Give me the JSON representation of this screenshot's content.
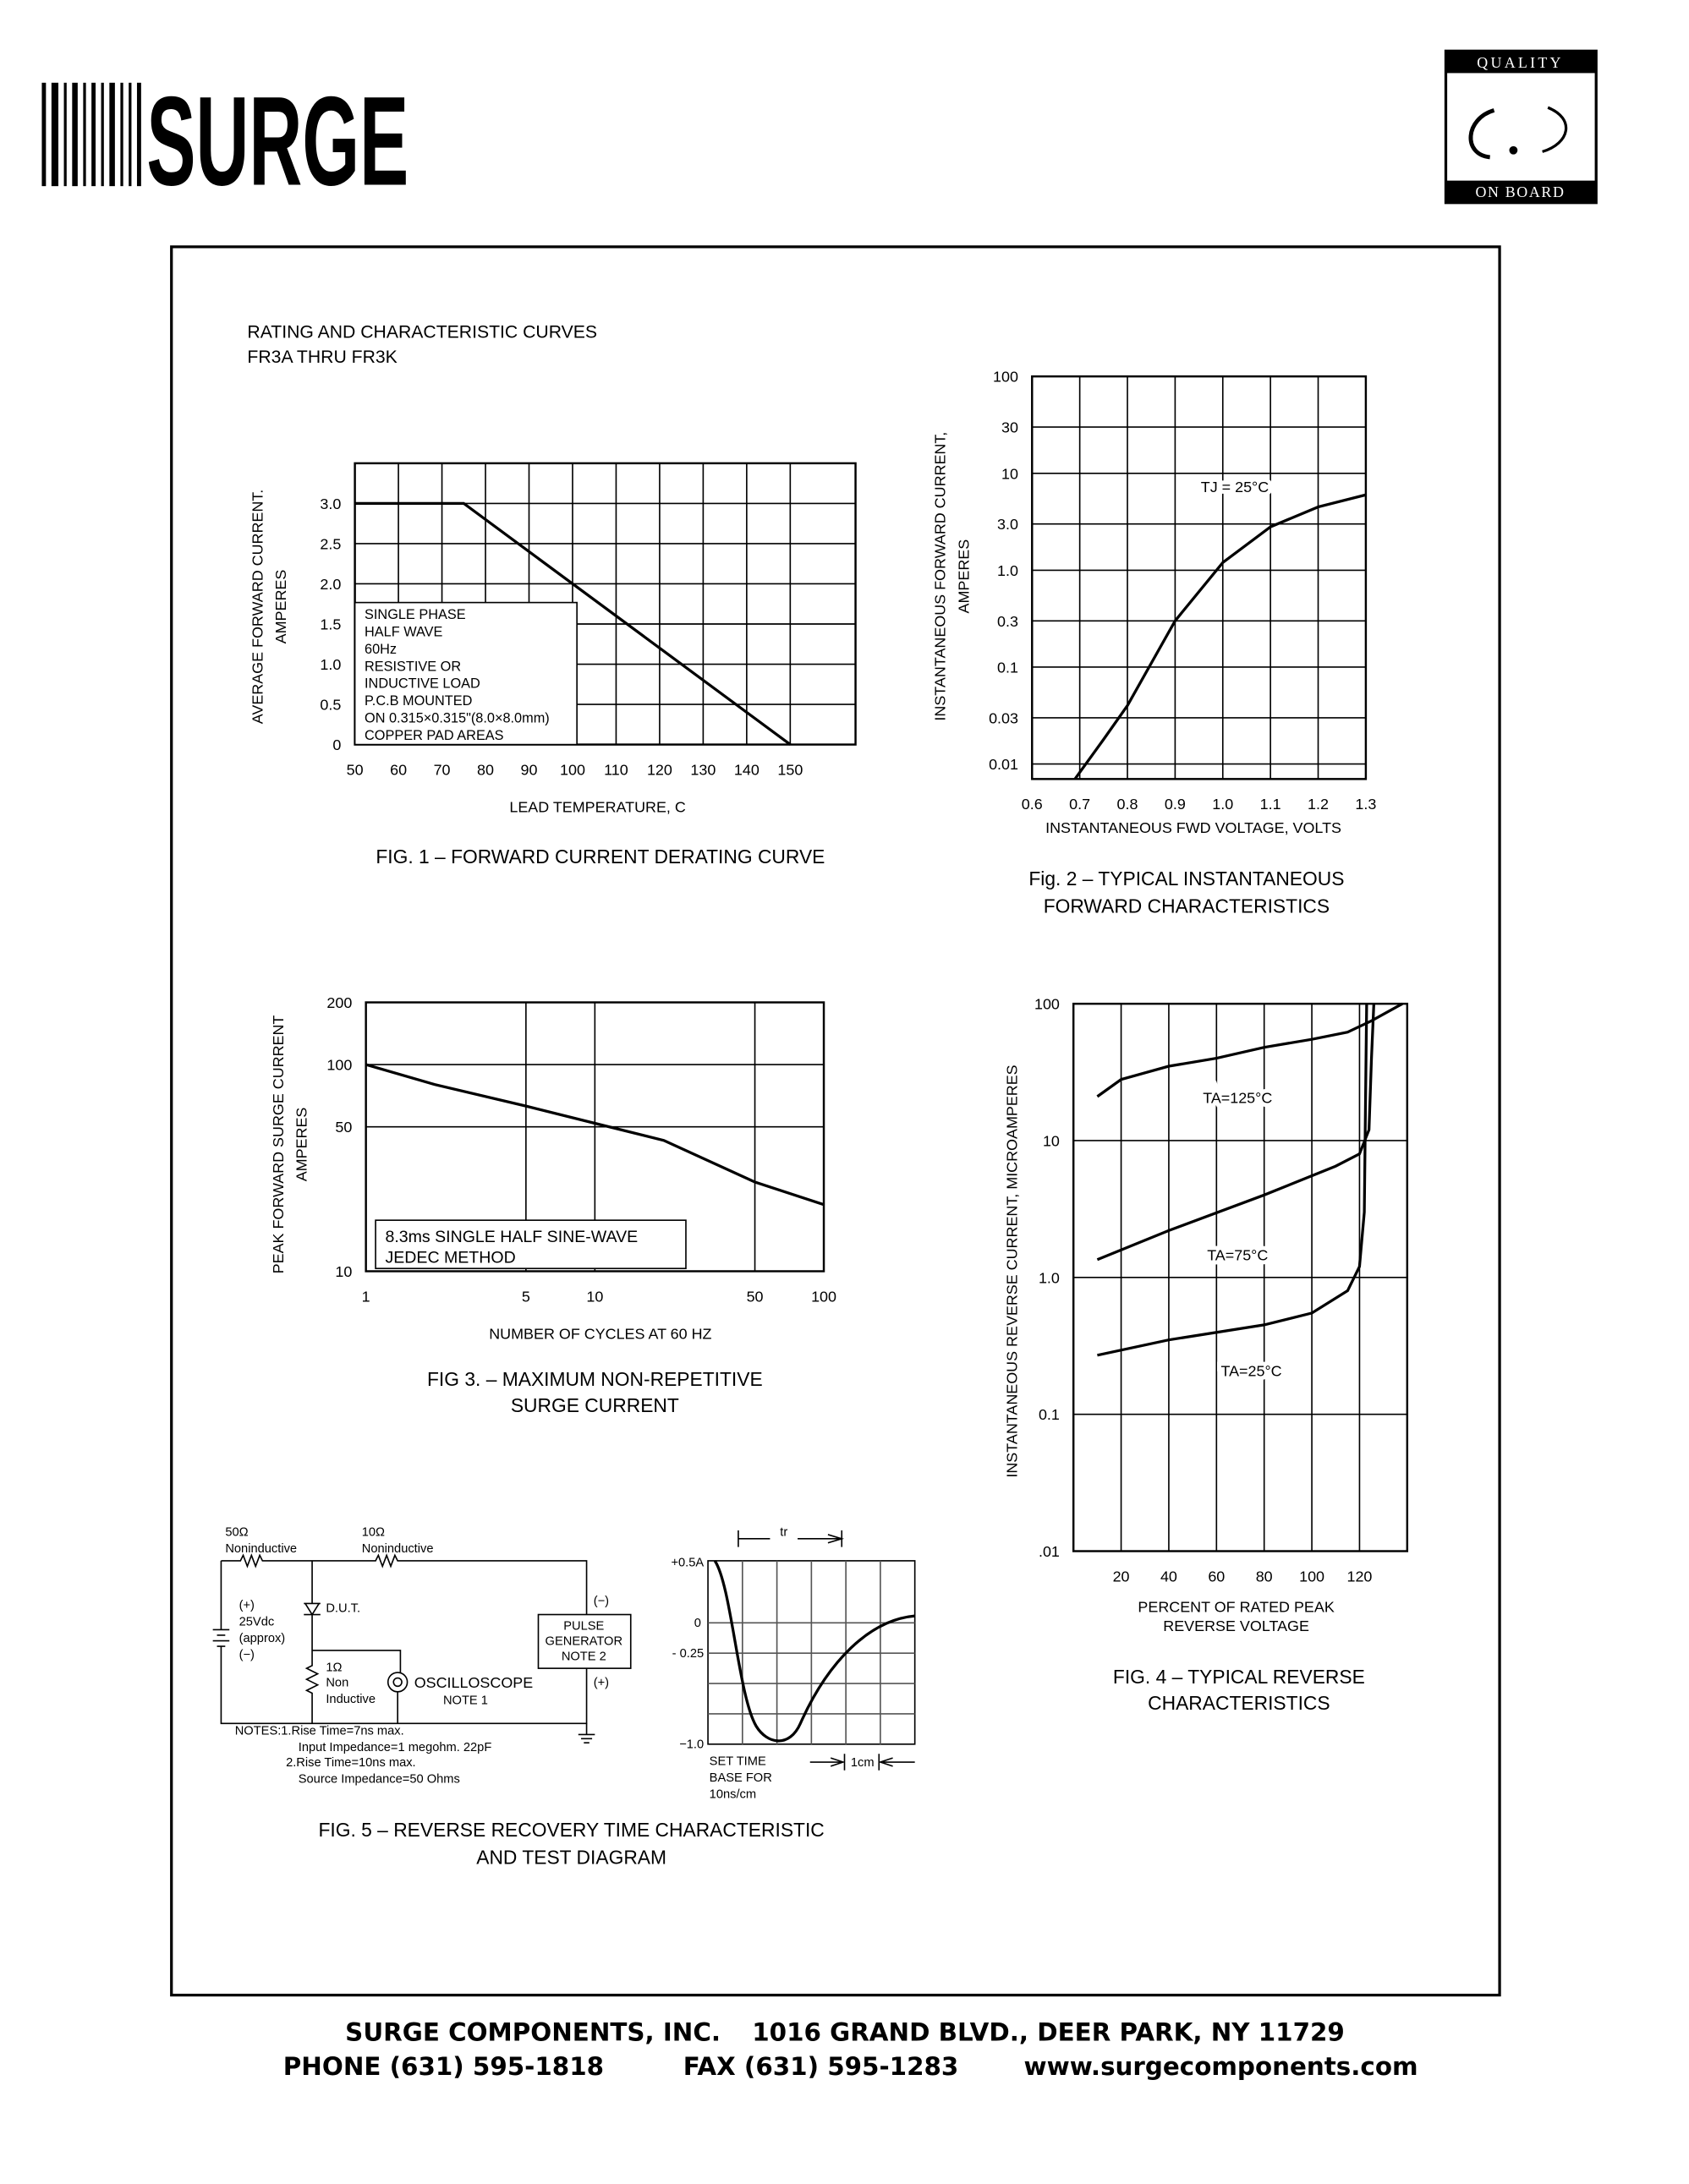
{
  "header": {
    "logo": "SURGE",
    "badge_top": "QUALITY",
    "badge_bottom": "ON BOARD"
  },
  "heading": [
    "RATING AND CHARACTERISTIC CURVES",
    "FR3A THRU FR3K"
  ],
  "chart_data": [
    {
      "type": "line",
      "title": [
        "FIG. 1 – FORWARD CURRENT DERATING CURVE"
      ],
      "x_label": [
        "LEAD TEMPERATURE, C"
      ],
      "y_label": [
        "AVERAGE FORWARD CURRENT.",
        "AMPERES"
      ],
      "x_scale": "linear",
      "y_scale": "linear",
      "grid": true,
      "xlim": [
        50,
        165
      ],
      "ylim": [
        0,
        3.5
      ],
      "xticks": [
        50,
        60,
        70,
        80,
        90,
        100,
        110,
        120,
        130,
        140,
        150
      ],
      "yticks": [
        0,
        0.5,
        {
          "value": 1,
          "label": "1.0"
        },
        1.5,
        {
          "value": 2,
          "label": "2.0"
        },
        2.5,
        {
          "value": 3,
          "label": "3.0"
        }
      ],
      "annotations": [
        "SINGLE PHASE",
        "HALF WAVE",
        "60Hz",
        "RESISTIVE OR",
        "INDUCTIVE LOAD",
        "P.C.B MOUNTED",
        "ON 0.315×0.315\"(8.0×8.0mm)",
        "COPPER PAD AREAS"
      ],
      "series": [
        {
          "color": "#000000",
          "x": [
            50,
            75,
            150
          ],
          "values": [
            3,
            3,
            0
          ]
        }
      ]
    },
    {
      "type": "line",
      "title": [
        "Fig. 2 – TYPICAL INSTANTANEOUS",
        "FORWARD CHARACTERISTICS"
      ],
      "x_label": [
        "INSTANTANEOUS FWD VOLTAGE, VOLTS"
      ],
      "y_label": [
        "INSTANTANEOUS FORWARD CURRENT,",
        "AMPERES"
      ],
      "x_scale": "linear",
      "y_scale": "log",
      "grid": true,
      "xlim": [
        0.6,
        1.3
      ],
      "ylim": [
        0.007,
        100
      ],
      "xticks": [
        0.6,
        0.7,
        0.8,
        0.9,
        {
          "value": 1,
          "label": "1.0"
        },
        1.1,
        1.2,
        1.3
      ],
      "yticks": [
        100,
        30,
        10,
        {
          "value": 3,
          "label": "3.0"
        },
        {
          "value": 1,
          "label": "1.0"
        },
        0.3,
        0.1,
        0.03,
        0.01
      ],
      "series": [
        {
          "name": "TJ = 25°C",
          "color": "#000000",
          "x": [
            0.69,
            0.75,
            0.8,
            0.9,
            1.0,
            1.1,
            1.2,
            1.3
          ],
          "values": [
            0.007,
            0.018,
            0.04,
            0.3,
            1.2,
            2.8,
            4.5,
            6
          ]
        }
      ]
    },
    {
      "type": "line",
      "title": [
        "FIG 3. – MAXIMUM NON-REPETITIVE",
        "SURGE CURRENT"
      ],
      "x_label": [
        "NUMBER OF CYCLES AT 60 HZ"
      ],
      "y_label": [
        "PEAK FORWARD SURGE CURRENT",
        "AMPERES"
      ],
      "x_scale": "log",
      "y_scale": "log",
      "grid": true,
      "xlim": [
        1,
        100
      ],
      "ylim": [
        10,
        200
      ],
      "xticks": [
        1,
        5,
        10,
        50,
        100
      ],
      "yticks": [
        10,
        50,
        100,
        200
      ],
      "annotations": [
        "8.3ms  SINGLE  HALF  SINE-WAVE",
        "JEDEC  METHOD"
      ],
      "series": [
        {
          "color": "#000000",
          "x": [
            1,
            2,
            5,
            10,
            20,
            50,
            100
          ],
          "values": [
            100,
            80,
            63,
            52,
            43,
            27,
            21
          ]
        }
      ]
    },
    {
      "type": "line",
      "title": [
        "FIG. 4 – TYPICAL REVERSE",
        "CHARACTERISTICS"
      ],
      "x_label": [
        "PERCENT OF RATED PEAK",
        "REVERSE VOLTAGE"
      ],
      "y_label": [
        "INSTANTANEOUS REVERSE CURRENT, MICROAMPERES"
      ],
      "x_scale": "linear",
      "y_scale": "log",
      "grid": true,
      "xlim": [
        0,
        140
      ],
      "ylim": [
        0.01,
        100
      ],
      "xticks": [
        20,
        40,
        60,
        80,
        100,
        120
      ],
      "yticks": [
        {
          "value": 0.01,
          "label": ".01"
        },
        0.1,
        {
          "value": 1,
          "label": "1.0"
        },
        10,
        100
      ],
      "series": [
        {
          "name": "TA=125°C",
          "color": "#000000",
          "x": [
            10,
            20,
            40,
            60,
            80,
            100,
            115,
            125,
            138
          ],
          "values": [
            21,
            28,
            35,
            40,
            48,
            55,
            62,
            75,
            100
          ]
        },
        {
          "name": "TA=75°C",
          "color": "#000000",
          "x": [
            10,
            40,
            80,
            110,
            120,
            124,
            125,
            126
          ],
          "values": [
            1.35,
            2.2,
            4,
            6.5,
            8,
            12,
            40,
            100
          ]
        },
        {
          "name": "TA=25°C",
          "color": "#000000",
          "x": [
            10,
            40,
            80,
            100,
            115,
            120,
            122,
            122.5,
            123
          ],
          "values": [
            0.27,
            0.35,
            0.45,
            0.55,
            0.8,
            1.2,
            3,
            20,
            100
          ]
        }
      ]
    }
  ],
  "diagram": {
    "title": [
      "FIG. 5 – REVERSE RECOVERY TIME CHARACTERISTIC",
      "AND TEST DIAGRAM"
    ],
    "labels": [
      "50Ω",
      "Noninductive",
      "10Ω",
      "Noninductive",
      "(+)",
      "25Vdc",
      "(approx)",
      "(−)",
      "D.U.T.",
      "1Ω",
      "Non",
      "Inductive",
      "OSCILLOSCOPE",
      "NOTE 1",
      "PULSE",
      "GENERATOR",
      "NOTE 2",
      "(−)",
      "(+)",
      "NOTES:1.Rise  Time=7ns  max.",
      "Input  Impedance=1  megohm.  22pF",
      "2.Rise  Time=10ns  max.",
      "Source  Impedance=50  Ohms",
      "tr",
      "+0.5A",
      "0",
      "- 0.25",
      "−1.0",
      "SET  TIME",
      "BASE  FOR",
      "10ns/cm",
      "1cm"
    ]
  },
  "footer": {
    "company": "SURGE COMPONENTS, INC.",
    "address": "1016 GRAND BLVD., DEER PARK, NY  11729",
    "phone": "PHONE (631) 595-1818",
    "fax": "FAX  (631) 595-1283",
    "web": "www.surgecomponents.com"
  }
}
